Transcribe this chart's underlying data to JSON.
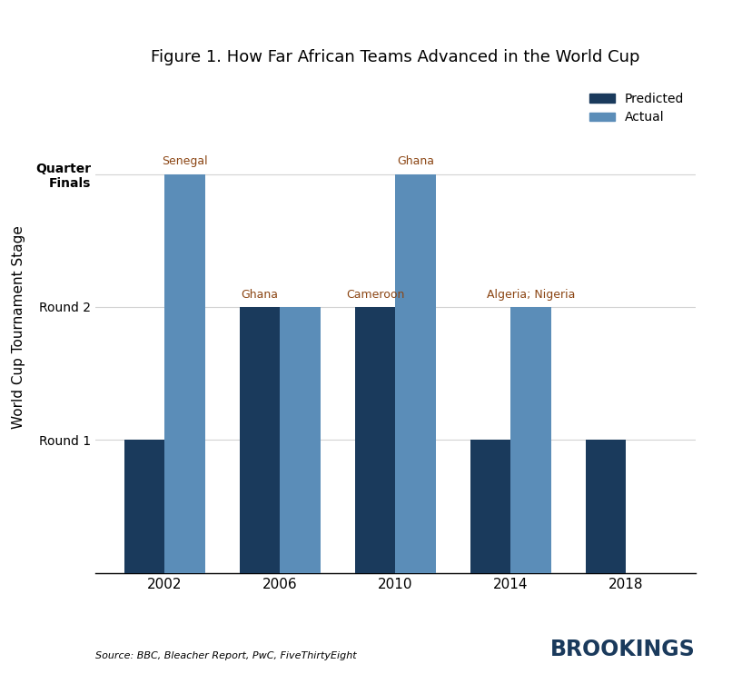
{
  "title": "Figure 1. How Far African Teams Advanced in the World Cup",
  "years": [
    2002,
    2006,
    2010,
    2014,
    2018
  ],
  "predicted": [
    1,
    2,
    2,
    1,
    1
  ],
  "actual": [
    3,
    2,
    3,
    2,
    null
  ],
  "color_predicted": "#1a3a5c",
  "color_actual": "#5b8db8",
  "ytick_labels": [
    "Round 1",
    "Round 2",
    "Quarter\nFinals"
  ],
  "ytick_values": [
    1,
    2,
    3
  ],
  "ylabel": "World Cup Tournament Stage",
  "source_text": "Source: BBC, Bleacher Report, PwC, FiveThirtyEight",
  "brookings_text": "BROOKINGS",
  "bar_width": 0.35,
  "annotation_color": "#8B4513",
  "annotations": [
    {
      "year_idx": 0,
      "series": "actual",
      "text": "Senegal"
    },
    {
      "year_idx": 1,
      "series": "predicted",
      "text": "Ghana"
    },
    {
      "year_idx": 2,
      "series": "actual",
      "text": "Ghana"
    },
    {
      "year_idx": 2,
      "series": "predicted",
      "text": "Cameroon"
    },
    {
      "year_idx": 3,
      "series": "actual",
      "text": "Algeria; Nigeria"
    }
  ],
  "ylim": [
    0,
    3.7
  ],
  "figsize": [
    8.06,
    7.42
  ],
  "dpi": 100
}
